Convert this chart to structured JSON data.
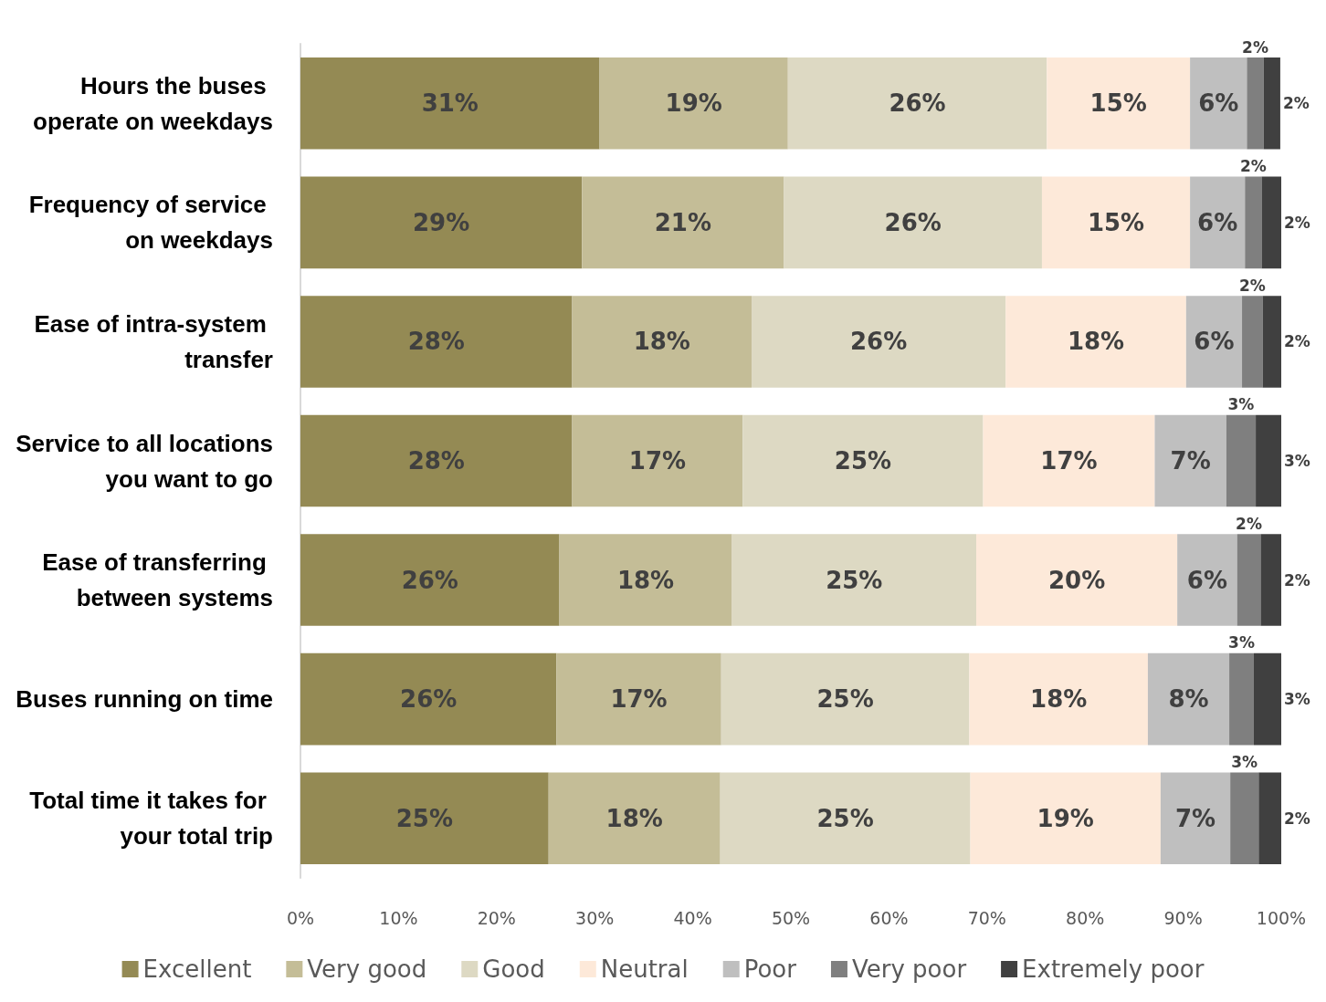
{
  "chart_data": {
    "type": "bar",
    "orientation": "horizontal",
    "stacked": true,
    "categories": [
      "Hours the buses operate on weekdays",
      "Frequency of service on weekdays",
      "Ease of intra-system transfer",
      "Service to all locations you want to go",
      "Ease of transferring between systems",
      "Buses running on time",
      "Total time it takes for your total trip"
    ],
    "series": [
      {
        "name": "Excellent",
        "color": "#948a54",
        "values": [
          30.5,
          28.7,
          27.7,
          27.7,
          26.4,
          26.1,
          25.3
        ],
        "value_labels": [
          "31%",
          "29%",
          "28%",
          "28%",
          "26%",
          "26%",
          "25%"
        ]
      },
      {
        "name": "Very good",
        "color": "#c4bd97",
        "values": [
          19.2,
          20.6,
          18.3,
          17.4,
          17.6,
          16.8,
          17.5
        ],
        "value_labels": [
          "19%",
          "21%",
          "18%",
          "17%",
          "18%",
          "17%",
          "18%"
        ]
      },
      {
        "name": "Good",
        "color": "#ddd9c3",
        "values": [
          26.4,
          26.3,
          25.9,
          24.5,
          24.9,
          25.3,
          25.5
        ],
        "value_labels": [
          "26%",
          "26%",
          "26%",
          "25%",
          "25%",
          "25%",
          "25%"
        ]
      },
      {
        "name": "Neutral",
        "color": "#fde9d9",
        "values": [
          14.6,
          15.1,
          18.4,
          17.5,
          20.5,
          18.2,
          19.4
        ],
        "value_labels": [
          "15%",
          "15%",
          "18%",
          "17%",
          "20%",
          "18%",
          "19%"
        ]
      },
      {
        "name": "Poor",
        "color": "#bfbfbf",
        "values": [
          5.8,
          5.6,
          5.7,
          7.3,
          6.1,
          8.3,
          7.1
        ],
        "value_labels": [
          "6%",
          "6%",
          "6%",
          "7%",
          "6%",
          "8%",
          "7%"
        ]
      },
      {
        "name": "Very poor",
        "color": "#7f7f7f",
        "values": [
          1.7,
          1.7,
          2.1,
          3.0,
          2.4,
          2.5,
          2.9
        ],
        "value_labels": [
          "2%",
          "2%",
          "2%",
          "3%",
          "2%",
          "3%",
          "3%"
        ]
      },
      {
        "name": "Extremely poor",
        "color": "#404040",
        "values": [
          1.7,
          2.0,
          1.9,
          2.6,
          2.1,
          2.8,
          2.3
        ],
        "value_labels": [
          "2%",
          "2%",
          "2%",
          "3%",
          "2%",
          "3%",
          "2%"
        ]
      }
    ],
    "xlim": [
      0,
      100
    ],
    "xticks": [
      {
        "value": 0,
        "label": "0%"
      },
      {
        "value": 10,
        "label": "10%"
      },
      {
        "value": 20,
        "label": "20%"
      },
      {
        "value": 30,
        "label": "30%"
      },
      {
        "value": 40,
        "label": "40%"
      },
      {
        "value": 50,
        "label": "50%"
      },
      {
        "value": 60,
        "label": "60%"
      },
      {
        "value": 70,
        "label": "70%"
      },
      {
        "value": 80,
        "label": "80%"
      },
      {
        "value": 90,
        "label": "90%"
      },
      {
        "value": 100,
        "label": "100%"
      }
    ],
    "grid": false,
    "legend": "bottom"
  }
}
